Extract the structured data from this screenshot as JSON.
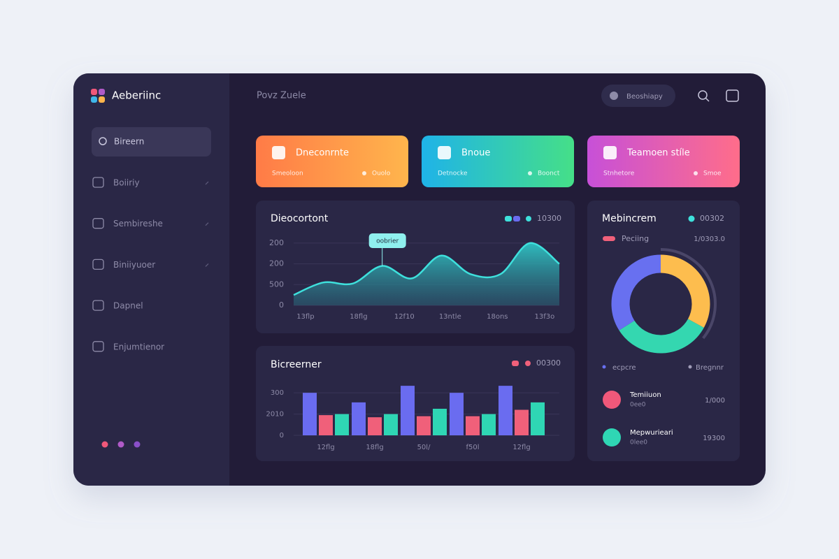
{
  "sidebar": {
    "brand": "Aeberiinc",
    "search": "Bireern",
    "items": [
      "Boiiriy",
      "Sembireshe",
      "Biniiyuoer",
      "Dapnel",
      "Enjumtienor"
    ]
  },
  "header": {
    "title": "Povz Zuele",
    "user": "Beoshiapy"
  },
  "cards": [
    {
      "title": "Dneconrnte",
      "left": "Smeoloon",
      "right": "Ouolo"
    },
    {
      "title": "Bnoue",
      "left": "Detnocke",
      "right": "Boonct"
    },
    {
      "title": "Teamoen stíle",
      "left": "Stnhetore",
      "right": "Smoe"
    }
  ],
  "area_chart": {
    "type": "area",
    "title": "Dieocortont",
    "legend": "10300",
    "tooltip": "oobrier",
    "color": "#3ee0dc",
    "x": [
      0,
      1,
      2,
      3,
      4,
      5,
      6,
      7,
      8,
      9
    ],
    "values": [
      0.5,
      1.1,
      1.05,
      1.9,
      1.3,
      2.4,
      1.5,
      1.5,
      3.0,
      2.0
    ],
    "xlim": [
      0,
      9
    ],
    "xticks": [
      {
        "value": 0.4,
        "label": "13flp"
      },
      {
        "value": 2.2,
        "label": "18flg"
      },
      {
        "value": 3.75,
        "label": "12f10"
      },
      {
        "value": 5.3,
        "label": "13ntle"
      },
      {
        "value": 6.9,
        "label": "18ons"
      },
      {
        "value": 8.5,
        "label": "13f3o"
      }
    ],
    "ylim": [
      0,
      3.3
    ],
    "yticks": [
      {
        "value": 0,
        "label": "0"
      },
      {
        "value": 1,
        "label": "500"
      },
      {
        "value": 2,
        "label": "200"
      },
      {
        "value": 3,
        "label": "200"
      }
    ],
    "grid": true
  },
  "bar_chart": {
    "type": "bar",
    "title": "Bicreerner",
    "legend": "00300",
    "categories": [
      "12flg",
      "18flg",
      "50l/",
      "f50l",
      "12flg"
    ],
    "series": [
      {
        "color": "#6a6cf0",
        "values": [
          2.0,
          1.55,
          2.33,
          2.0,
          2.33
        ]
      },
      {
        "color": "#f0607a",
        "values": [
          0.95,
          0.85,
          0.9,
          0.9,
          1.2
        ]
      },
      {
        "color": "#2fd6b4",
        "values": [
          1.0,
          1.0,
          1.25,
          1.0,
          1.55
        ]
      }
    ],
    "ylim": [
      0,
      2.4
    ],
    "yticks": [
      {
        "value": 0,
        "label": "0"
      },
      {
        "value": 1,
        "label": "2010"
      },
      {
        "value": 2,
        "label": "300"
      }
    ],
    "grid": true
  },
  "donut_chart": {
    "type": "pie",
    "title": "Mebincrem",
    "legend": "00302",
    "tag": "Peciing",
    "tag_value": "1/0303.0",
    "values": [
      33,
      33,
      34
    ],
    "colors": [
      "#fdbd4e",
      "#34d7b0",
      "#6870f0"
    ],
    "bottom_left": "ecpcre",
    "bottom_right": "Bregnnr",
    "list": [
      {
        "title": "Temiiuon",
        "sub": "0ee0",
        "value": "1/000"
      },
      {
        "title": "Mepwurieari",
        "sub": "0lee0",
        "value": "19300"
      }
    ]
  }
}
